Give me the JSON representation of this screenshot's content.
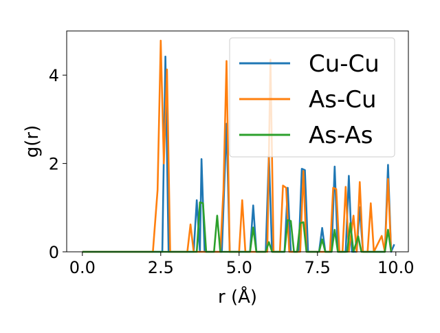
{
  "chart_data": {
    "type": "line",
    "title": "",
    "xlabel": "r (Å)",
    "ylabel": "g(r)",
    "xlim": [
      -0.5,
      10.4
    ],
    "ylim": [
      0,
      5.0
    ],
    "xticks": [
      0.0,
      2.5,
      5.0,
      7.5,
      10.0
    ],
    "xtick_labels": [
      "0.0",
      "2.5",
      "5.0",
      "7.5",
      "10.0"
    ],
    "yticks": [
      0,
      2,
      4
    ],
    "ytick_labels": [
      "0",
      "2",
      "4"
    ],
    "grid": false,
    "legend_position": "top-right",
    "series": [
      {
        "name": "Cu-Cu",
        "color": "#1f77b4",
        "points": [
          [
            0.0,
            0
          ],
          [
            2.55,
            0
          ],
          [
            2.65,
            4.42
          ],
          [
            2.75,
            0
          ],
          [
            3.55,
            0
          ],
          [
            3.65,
            1.17
          ],
          [
            3.75,
            0
          ],
          [
            3.8,
            2.1
          ],
          [
            3.9,
            0
          ],
          [
            4.45,
            0
          ],
          [
            4.6,
            2.9
          ],
          [
            4.7,
            0
          ],
          [
            5.35,
            0
          ],
          [
            5.45,
            1.05
          ],
          [
            5.55,
            0
          ],
          [
            5.85,
            0
          ],
          [
            5.95,
            2.2
          ],
          [
            6.05,
            0
          ],
          [
            6.45,
            0
          ],
          [
            6.55,
            1.45
          ],
          [
            6.65,
            0
          ],
          [
            6.9,
            0
          ],
          [
            7.0,
            1.88
          ],
          [
            7.1,
            1.85
          ],
          [
            7.2,
            0
          ],
          [
            7.55,
            0
          ],
          [
            7.65,
            0.54
          ],
          [
            7.75,
            0
          ],
          [
            7.95,
            0
          ],
          [
            8.05,
            1.93
          ],
          [
            8.15,
            0
          ],
          [
            8.4,
            0
          ],
          [
            8.5,
            1.72
          ],
          [
            8.6,
            0
          ],
          [
            8.75,
            0
          ],
          [
            8.85,
            1.01
          ],
          [
            8.95,
            0
          ],
          [
            9.65,
            0
          ],
          [
            9.75,
            1.97
          ],
          [
            9.85,
            0
          ],
          [
            9.95,
            0.17
          ]
        ]
      },
      {
        "name": "As-Cu",
        "color": "#ff7f0e",
        "points": [
          [
            0.0,
            0
          ],
          [
            2.25,
            0
          ],
          [
            2.4,
            1.4
          ],
          [
            2.5,
            4.78
          ],
          [
            2.6,
            2.0
          ],
          [
            2.7,
            4.13
          ],
          [
            2.8,
            0
          ],
          [
            3.35,
            0
          ],
          [
            3.45,
            0.62
          ],
          [
            3.55,
            0
          ],
          [
            4.4,
            0
          ],
          [
            4.5,
            1.4
          ],
          [
            4.6,
            4.32
          ],
          [
            4.7,
            0
          ],
          [
            5.0,
            0
          ],
          [
            5.1,
            1.17
          ],
          [
            5.2,
            0
          ],
          [
            5.9,
            0
          ],
          [
            6.0,
            4.35
          ],
          [
            6.1,
            0
          ],
          [
            6.3,
            0
          ],
          [
            6.4,
            1.5
          ],
          [
            6.5,
            1.45
          ],
          [
            6.6,
            0
          ],
          [
            6.95,
            0
          ],
          [
            7.05,
            1.83
          ],
          [
            7.15,
            0
          ],
          [
            7.9,
            0
          ],
          [
            8.0,
            1.45
          ],
          [
            8.1,
            1.42
          ],
          [
            8.2,
            0
          ],
          [
            8.3,
            0
          ],
          [
            8.4,
            1.47
          ],
          [
            8.5,
            0
          ],
          [
            8.65,
            0.82
          ],
          [
            8.75,
            0
          ],
          [
            8.85,
            1.58
          ],
          [
            8.95,
            0
          ],
          [
            9.1,
            0
          ],
          [
            9.2,
            1.1
          ],
          [
            9.3,
            0
          ],
          [
            9.55,
            0.36
          ],
          [
            9.65,
            0
          ],
          [
            9.75,
            1.65
          ],
          [
            9.85,
            0
          ]
        ]
      },
      {
        "name": "As-As",
        "color": "#2ca02c",
        "points": [
          [
            0.0,
            0
          ],
          [
            3.65,
            0
          ],
          [
            3.75,
            1.12
          ],
          [
            3.85,
            1.1
          ],
          [
            3.95,
            0
          ],
          [
            4.2,
            0
          ],
          [
            4.3,
            0.82
          ],
          [
            4.4,
            0
          ],
          [
            5.35,
            0
          ],
          [
            5.45,
            0.55
          ],
          [
            5.55,
            0
          ],
          [
            5.85,
            0
          ],
          [
            5.95,
            0.22
          ],
          [
            6.05,
            0
          ],
          [
            6.45,
            0
          ],
          [
            6.55,
            0.72
          ],
          [
            6.65,
            0.7
          ],
          [
            6.75,
            0
          ],
          [
            6.85,
            0
          ],
          [
            6.95,
            0.65
          ],
          [
            7.05,
            0.67
          ],
          [
            7.15,
            0
          ],
          [
            7.55,
            0
          ],
          [
            7.65,
            0.28
          ],
          [
            7.75,
            0
          ],
          [
            7.95,
            0
          ],
          [
            8.05,
            0.5
          ],
          [
            8.15,
            0
          ],
          [
            8.45,
            0
          ],
          [
            8.55,
            0.65
          ],
          [
            8.65,
            0
          ],
          [
            8.8,
            0.35
          ],
          [
            8.9,
            0
          ],
          [
            9.65,
            0
          ],
          [
            9.75,
            0.5
          ],
          [
            9.85,
            0
          ]
        ]
      }
    ]
  }
}
